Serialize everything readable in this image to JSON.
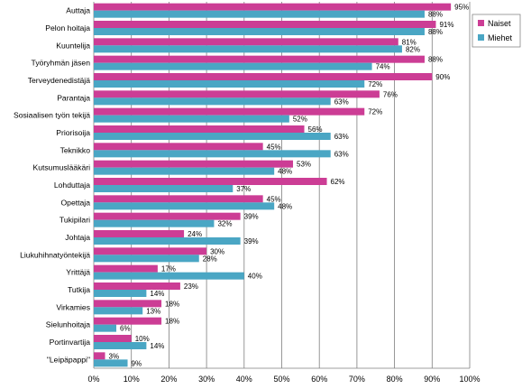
{
  "chart_data": {
    "type": "bar",
    "orientation": "horizontal",
    "categories": [
      "Auttaja",
      "Pelon hoitaja",
      "Kuuntelija",
      "Työryhmän jäsen",
      "Terveydenedistäjä",
      "Parantaja",
      "Sosiaalisen työn tekijä",
      "Priorisoija",
      "Teknikko",
      "Kutsumuslääkäri",
      "Lohduttaja",
      "Opettaja",
      "Tukipilari",
      "Johtaja",
      "Liukuhihnatyöntekijä",
      "Yrittäjä",
      "Tutkija",
      "Virkamies",
      "Sielunhoitaja",
      "Portinvartija",
      "\"Leipäpappi\""
    ],
    "series": [
      {
        "name": "Naiset",
        "color": "#cc3d95",
        "values": [
          95,
          91,
          81,
          88,
          90,
          76,
          72,
          56,
          45,
          53,
          62,
          45,
          39,
          24,
          30,
          17,
          23,
          18,
          18,
          10,
          3
        ]
      },
      {
        "name": "Miehet",
        "color": "#4aa6c4",
        "values": [
          88,
          88,
          82,
          74,
          72,
          63,
          52,
          63,
          63,
          48,
          37,
          48,
          32,
          39,
          28,
          40,
          14,
          13,
          6,
          14,
          9
        ]
      }
    ],
    "value_suffix": "%",
    "xlim": [
      0,
      100
    ],
    "xticks": [
      "0%",
      "10%",
      "20%",
      "30%",
      "40%",
      "50%",
      "60%",
      "70%",
      "80%",
      "90%",
      "100%"
    ],
    "grid": true,
    "legend_position": "top-right",
    "title": "",
    "xlabel": "",
    "ylabel": ""
  }
}
